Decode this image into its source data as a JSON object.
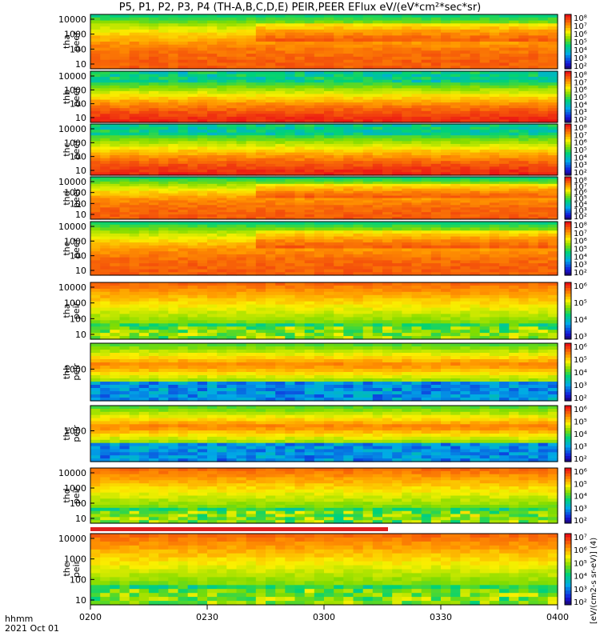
{
  "title": "P5, P1, P2, P3, P4 (TH-A,B,C,D,E) PEIR,PEER EFlux eV/(eV*cm²*sec*sr)",
  "x_label_line1": "hhmm",
  "x_label_line2": "2021 Oct 01",
  "colorbar_unit_label": "[eV/(cm2-s sr-eV)] (4)",
  "chart_data": {
    "type": "heatmap",
    "x_ticks": [
      "0200",
      "0230",
      "0300",
      "0330",
      "0400"
    ],
    "x_range": [
      "02:00",
      "04:00"
    ],
    "panels": [
      {
        "name": "tha peer",
        "y_ticks": [
          "10",
          "100",
          "1000",
          "10000"
        ],
        "y_scale": "log",
        "colorbar_ticks": [
          "10²",
          "10³",
          "10⁴",
          "10⁵",
          "10⁶",
          "10⁷",
          "10⁸"
        ]
      },
      {
        "name": "thb peer",
        "y_ticks": [
          "10",
          "100",
          "1000",
          "10000"
        ],
        "y_scale": "log",
        "colorbar_ticks": [
          "10²",
          "10³",
          "10⁴",
          "10⁵",
          "10⁶",
          "10⁷",
          "10⁸"
        ]
      },
      {
        "name": "thc peer",
        "y_ticks": [
          "10",
          "100",
          "1000",
          "10000"
        ],
        "y_scale": "log",
        "colorbar_ticks": [
          "10²",
          "10³",
          "10⁴",
          "10⁵",
          "10⁶",
          "10⁷",
          "10⁸"
        ]
      },
      {
        "name": "thd peer",
        "y_ticks": [
          "10",
          "100",
          "1000",
          "10000"
        ],
        "y_scale": "log",
        "colorbar_ticks": [
          "10²",
          "10³",
          "10⁴",
          "10⁵",
          "10⁶",
          "10⁷",
          "10⁸"
        ]
      },
      {
        "name": "the peer",
        "y_ticks": [
          "10",
          "100",
          "1000",
          "10000"
        ],
        "y_scale": "log",
        "colorbar_ticks": [
          "10²",
          "10³",
          "10⁴",
          "10⁵",
          "10⁶",
          "10⁷",
          "10⁸"
        ]
      },
      {
        "name": "tha peir",
        "y_ticks": [
          "10",
          "100",
          "1000",
          "10000"
        ],
        "y_scale": "log",
        "colorbar_ticks": [
          "10³",
          "10⁴",
          "10⁵",
          "10⁶"
        ]
      },
      {
        "name": "thb peir",
        "y_ticks": [
          "1000"
        ],
        "y_scale": "log",
        "colorbar_ticks": [
          "10²",
          "10³",
          "10⁴",
          "10⁵",
          "10⁶"
        ]
      },
      {
        "name": "thc peir",
        "y_ticks": [
          "1000"
        ],
        "y_scale": "log",
        "colorbar_ticks": [
          "10²",
          "10³",
          "10⁴",
          "10⁵",
          "10⁶"
        ]
      },
      {
        "name": "thd peir",
        "y_ticks": [
          "10",
          "100",
          "1000",
          "10000"
        ],
        "y_scale": "log",
        "colorbar_ticks": [
          "10²",
          "10³",
          "10⁴",
          "10⁵",
          "10⁶"
        ]
      },
      {
        "name": "the peir",
        "y_ticks": [
          "10",
          "100",
          "1000",
          "10000"
        ],
        "y_scale": "log",
        "colorbar_ticks": [
          "10²",
          "10³",
          "10⁴",
          "10⁵",
          "10⁶",
          "10⁷"
        ]
      }
    ]
  }
}
